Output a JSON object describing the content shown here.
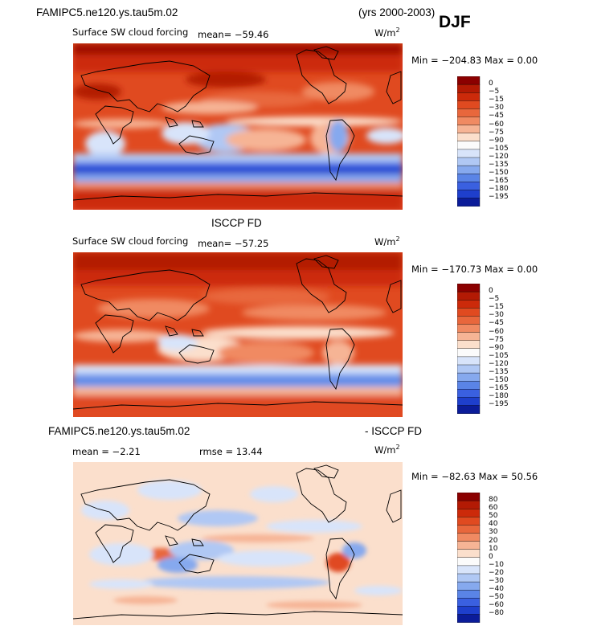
{
  "header": {
    "model": "FAMIPC5.ne120.ys.tau5m.02",
    "years": "(yrs 2000-2003)",
    "season": "DJF"
  },
  "panels": [
    {
      "title": "",
      "variable": "Surface SW cloud forcing",
      "mean": "mean=  −59.46",
      "units": "W/m",
      "units_sup": "2",
      "minmax": "Min = −204.83 Max =    0.00",
      "colorbar_labels": [
        "0",
        "−5",
        "−15",
        "−30",
        "−45",
        "−60",
        "−75",
        "−90",
        "−105",
        "−120",
        "−135",
        "−150",
        "−165",
        "−180",
        "−195"
      ],
      "colorbar_colors": [
        "#8b0000",
        "#b31a04",
        "#cc2a0a",
        "#e04a20",
        "#e8673c",
        "#f08a62",
        "#f6b495",
        "#fbdfcc",
        "#fbfbfb",
        "#d8e4fa",
        "#b0c8f4",
        "#86a9ee",
        "#5a84e6",
        "#3a60e0",
        "#1e3fcc",
        "#0b1c99"
      ]
    },
    {
      "title": "ISCCP FD",
      "variable": "Surface SW cloud forcing",
      "mean": "mean=  −57.25",
      "units": "W/m",
      "units_sup": "2",
      "minmax": "Min = −170.73 Max =    0.00",
      "colorbar_labels": [
        "0",
        "−5",
        "−15",
        "−30",
        "−45",
        "−60",
        "−75",
        "−90",
        "−105",
        "−120",
        "−135",
        "−150",
        "−165",
        "−180",
        "−195"
      ],
      "colorbar_colors": [
        "#8b0000",
        "#b31a04",
        "#cc2a0a",
        "#e04a20",
        "#e8673c",
        "#f08a62",
        "#f6b495",
        "#fbdfcc",
        "#fbfbfb",
        "#d8e4fa",
        "#b0c8f4",
        "#86a9ee",
        "#5a84e6",
        "#3a60e0",
        "#1e3fcc",
        "#0b1c99"
      ]
    },
    {
      "title_left": "FAMIPC5.ne120.ys.tau5m.02",
      "title_right": "- ISCCP FD",
      "mean": "mean =   −2.21",
      "rmse": "rmse =   13.44",
      "units": "W/m",
      "units_sup": "2",
      "minmax": "Min = −82.63 Max =   50.56",
      "colorbar_labels": [
        "80",
        "60",
        "50",
        "40",
        "30",
        "20",
        "10",
        "0",
        "−10",
        "−20",
        "−30",
        "−40",
        "−50",
        "−60",
        "−80"
      ],
      "colorbar_colors": [
        "#8b0000",
        "#b31a04",
        "#cc2a0a",
        "#e04a20",
        "#e8673c",
        "#f08a62",
        "#f6b495",
        "#fbdfcc",
        "#fbfbfb",
        "#d8e4fa",
        "#b0c8f4",
        "#86a9ee",
        "#5a84e6",
        "#3a60e0",
        "#1e3fcc",
        "#0b1c99"
      ]
    }
  ]
}
